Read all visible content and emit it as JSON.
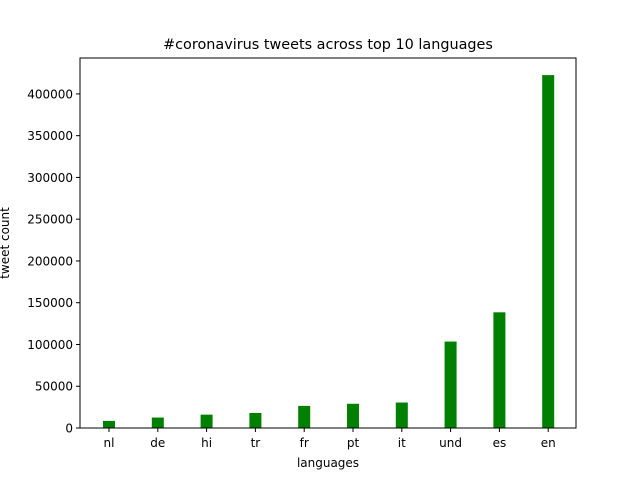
{
  "chart_data": {
    "type": "bar",
    "title": "#coronavirus tweets across top 10 languages",
    "xlabel": "languages",
    "ylabel": "tweet count",
    "categories": [
      "nl",
      "de",
      "hi",
      "tr",
      "fr",
      "pt",
      "it",
      "und",
      "es",
      "en"
    ],
    "values": [
      8500,
      12500,
      16000,
      18000,
      26500,
      29000,
      30500,
      103500,
      138500,
      422500
    ],
    "ylim": [
      0,
      443000
    ],
    "yticks": [
      0,
      50000,
      100000,
      150000,
      200000,
      250000,
      300000,
      350000,
      400000
    ],
    "bar_color": "#008000",
    "grid": false,
    "legend": "none"
  }
}
